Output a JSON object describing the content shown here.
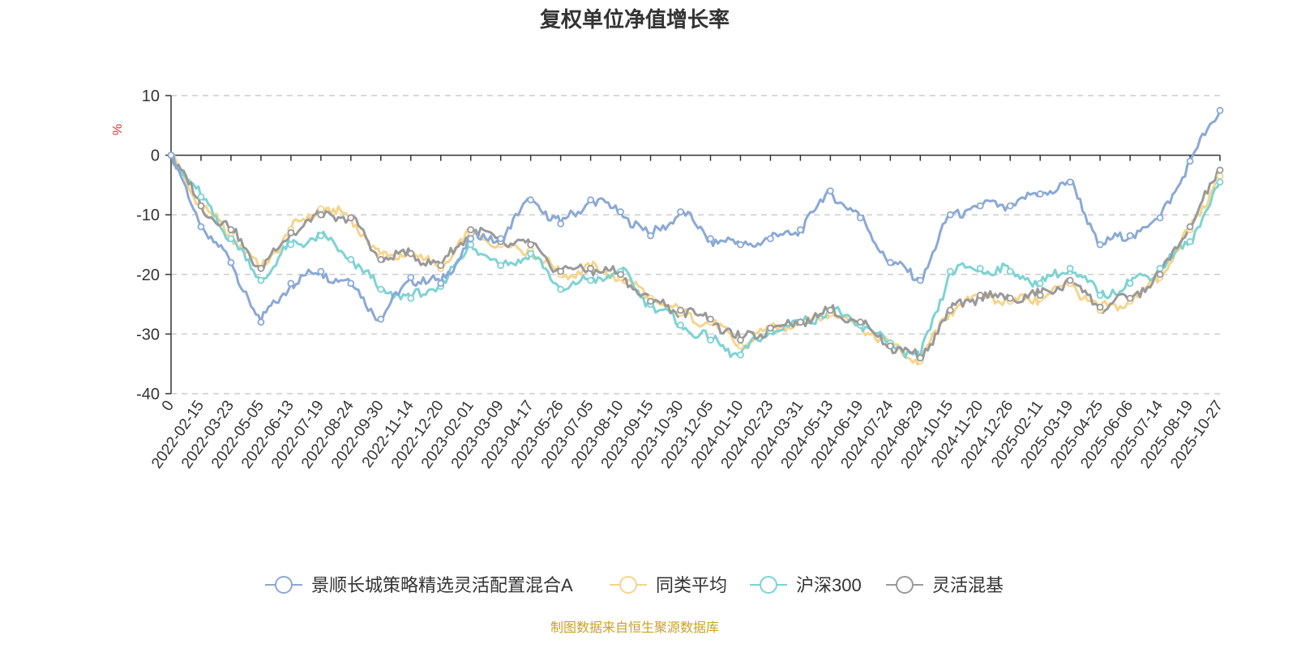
{
  "chart_data": {
    "type": "line",
    "title": "复权单位净值增长率",
    "ylabel": "%",
    "ylim": [
      -40,
      10
    ],
    "yticks": [
      10,
      0,
      -10,
      -20,
      -30,
      -40
    ],
    "grid": true,
    "legend_position": "bottom",
    "source": "制图数据来自恒生聚源数据库",
    "x_labels": [
      "0",
      "2022-02-15",
      "2022-03-23",
      "2022-05-05",
      "2022-06-13",
      "2022-07-19",
      "2022-08-24",
      "2022-09-30",
      "2022-11-14",
      "2022-12-20",
      "2023-02-01",
      "2023-03-09",
      "2023-04-17",
      "2023-05-26",
      "2023-07-05",
      "2023-08-10",
      "2023-09-15",
      "2023-10-30",
      "2023-12-05",
      "2024-01-10",
      "2024-02-23",
      "2024-03-31",
      "2024-05-13",
      "2024-06-19",
      "2024-07-24",
      "2024-08-29",
      "2024-10-15",
      "2024-11-20",
      "2024-12-26",
      "2025-02-11",
      "2025-03-19",
      "2025-04-25",
      "2025-06-06",
      "2025-07-14",
      "2025-08-19",
      "2025-10-27"
    ],
    "series": [
      {
        "name": "景顺长城策略精选灵活配置混合A",
        "color": "#8aa9d6",
        "values": [
          0,
          -12,
          -18,
          -28,
          -21.5,
          -19.5,
          -21.5,
          -27.5,
          -20.5,
          -21.5,
          -14,
          -14,
          -7.5,
          -11.5,
          -7.5,
          -9.5,
          -13.5,
          -9.5,
          -14,
          -15,
          -14,
          -12.5,
          -6,
          -10.5,
          -18,
          -21,
          -10,
          -8.5,
          -8.5,
          -6.5,
          -4.5,
          -15,
          -13.5,
          -10.5,
          -1,
          7.5
        ]
      },
      {
        "name": "同类平均",
        "color": "#f6d48b",
        "values": [
          0,
          -8.5,
          -13.5,
          -19,
          -12.5,
          -9,
          -10.5,
          -17,
          -16.5,
          -19,
          -13,
          -15,
          -16,
          -20,
          -19,
          -20.5,
          -24,
          -26.5,
          -28,
          -32,
          -29,
          -28,
          -26.5,
          -28.5,
          -32,
          -34.5,
          -26,
          -23.5,
          -24.5,
          -24,
          -21.5,
          -26,
          -24.5,
          -20.5,
          -12.5,
          -3.5
        ]
      },
      {
        "name": "沪深300",
        "color": "#7dd3d4",
        "values": [
          0,
          -7,
          -14,
          -21,
          -15,
          -13.5,
          -17.5,
          -22.5,
          -24,
          -22,
          -15,
          -18.5,
          -16.5,
          -22.5,
          -21,
          -19.5,
          -25,
          -28.5,
          -31,
          -33.5,
          -29.5,
          -28,
          -26,
          -28.5,
          -31.5,
          -34,
          -19.5,
          -19,
          -19.5,
          -21.5,
          -19,
          -23.5,
          -21.5,
          -19,
          -14.5,
          -4.5
        ]
      },
      {
        "name": "灵活混基",
        "color": "#999999",
        "values": [
          0,
          -8.5,
          -12.5,
          -19,
          -13,
          -10,
          -10.5,
          -17.5,
          -16.5,
          -18.5,
          -12.5,
          -14.5,
          -15,
          -19.5,
          -19,
          -20,
          -24.5,
          -26,
          -27.5,
          -31,
          -29,
          -28,
          -26,
          -28,
          -32,
          -34,
          -26,
          -23.5,
          -24,
          -23.5,
          -21,
          -25.5,
          -24,
          -20,
          -12,
          -2.5
        ]
      }
    ]
  }
}
